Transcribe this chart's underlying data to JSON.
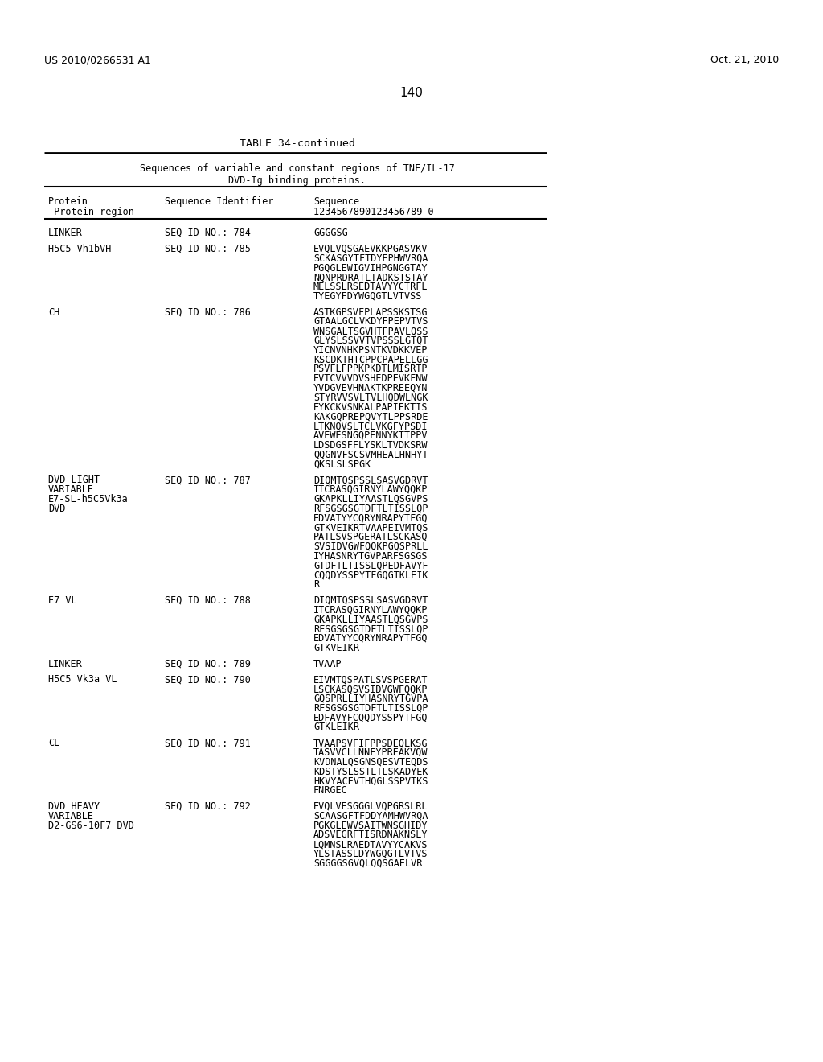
{
  "page_number": "140",
  "patent_number": "US 2010/0266531 A1",
  "patent_date": "Oct. 21, 2010",
  "table_title": "TABLE 34-continued",
  "table_subtitle1": "Sequences of variable and constant regions of TNF/IL-17",
  "table_subtitle2": "DVD-Ig binding proteins.",
  "col1_header1": "Protein",
  "col1_header2": " Protein region",
  "col2_header": "Sequence Identifier",
  "col3_header1": "Sequence",
  "col3_header2": "1234567890123456789 0",
  "rows": [
    {
      "protein": "LINKER",
      "seq_id": "SEQ ID NO.: 784",
      "sequence": "GGGGSG"
    },
    {
      "protein": "H5C5 Vh1bVH",
      "seq_id": "SEQ ID NO.: 785",
      "sequence": "EVQLVQSGAEVKKPGASVKV\nSCKASGYTFTDYEPHWVRQA\nPGQGLEWIGVIHPGNGGTAY\nNQNPRDRATLTADKSTSTAY\nMELSSLRSEDTAVYYCTRFL\nTYEGYFDYWGQGTLVTVSS"
    },
    {
      "protein": "CH",
      "seq_id": "SEQ ID NO.: 786",
      "sequence": "ASTKGPSVFPLAPSSKSTSG\nGTAALGCLVKDYFPEPVTVS\nWNSGALTSGVHTFPAVLQSS\nGLYSLSSVVTVPSSSLGTQT\nYICNVNHKPSNTKVDKKVEP\nKSCDKTHTCPPCPAPELLGG\nPSVFLFPPKPKDTLMISRTP\nEVTCVVVDVSHEDPEVKFNW\nYVDGVEVHNAKTKPREEQYN\nSTYRVVSVLTVLHQDWLNGK\nEYKCKVSNKALPAPIEKTIS\nKAKGQPREPQVYTLPPSRDE\nLTKNQVSLTCLVKGFYPSDI\nAVEWESNGQPENNYKTTPPV\nLDSDGSFFLYSKLTVDKSRW\nQQGNVFSCSVMHEALHNHYT\nQKSLSLSPGK"
    },
    {
      "protein": "DVD LIGHT\nVARIABLE\nE7-SL-h5C5Vk3a\nDVD",
      "seq_id": "SEQ ID NO.: 787",
      "sequence": "DIQMTQSPSSLSASVGDRVT\nITCRASQGIRNYLAWYQQKP\nGKAPKLLIYAASTLQSGVPS\nRFSGSGSGTDFTLTISSLQP\nEDVATYYCQRYNRAPYTFGQ\nGTKVEIKRTVAAPEIVMTQS\nPATLSVSPGERATLSCKASQ\nSVSIDVGWFQQKPGQSPRLL\nIYHASNRYTGVPARFSGSGS\nGTDFTLTISSLQPEDFAVYF\nCQQDYSSPYTFGQGTKLEIK\nR"
    },
    {
      "protein": "E7 VL",
      "seq_id": "SEQ ID NO.: 788",
      "sequence": "DIQMTQSPSSLSASVGDRVT\nITCRASQGIRNYLAWYQQKP\nGKAPKLLIYAASTLQSGVPS\nRFSGSGSGTDFTLTISSLQP\nEDVATYYCQRYNRAPYTFGQ\nGTKVEIKR"
    },
    {
      "protein": "LINKER",
      "seq_id": "SEQ ID NO.: 789",
      "sequence": "TVAAP"
    },
    {
      "protein": "H5C5 Vk3a VL",
      "seq_id": "SEQ ID NO.: 790",
      "sequence": "EIVMTQSPATLSVSPGERAT\nLSCKASQSVSIDVGWFQQKP\nGQSPRLLIYHASNRYTGVPA\nRFSGSGSGTDFTLTISSLQP\nEDFAVYFCQQDYSSPYTFGQ\nGTKLEIKR"
    },
    {
      "protein": "CL",
      "seq_id": "SEQ ID NO.: 791",
      "sequence": "TVAAPSVFIFPPSDEQLKSG\nTASVVCLLNNFYPREAKVQW\nKVDNALQSGNSQESVTEQDS\nKDSTYSLSSTLTLSKADYEK\nHKVYACEVTHQGLSSPVTKS\nFNRGEC"
    },
    {
      "protein": "DVD HEAVY\nVARIABLE\nD2-GS6-10F7 DVD",
      "seq_id": "SEQ ID NO.: 792",
      "sequence": "EVQLVESGGGLVQPGRSLRL\nSCAASGFTFDDYAMHWVRQA\nPGKGLEWVSAITWNSGHIDY\nADSVEGRFTISRDNAKNSLY\nLQMNSLRAEDTAVYYCAKVS\nYLSTASSLDYWGQGTLVTVS\nSGGGGSGVQLQQSGAELVR"
    }
  ],
  "background_color": "#ffffff",
  "text_color": "#000000"
}
